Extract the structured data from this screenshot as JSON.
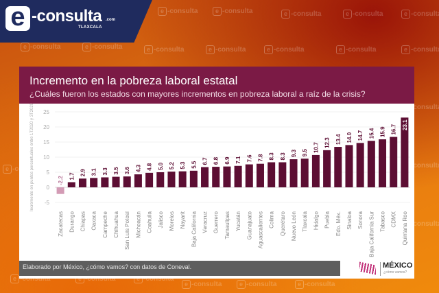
{
  "brand": {
    "logo_letter": "e",
    "name": "-consulta",
    "domain": ".com",
    "city": "TLAXCALA",
    "watermark": "-consulta"
  },
  "card": {
    "title": "Incremento en la pobreza laboral estatal",
    "subtitle": "¿Cuáles fueron los estados con mayores incrementos en pobreza laboral a raíz de la crisis?",
    "footer": "Elaborado por México, ¿cómo vamos? con datos de Coneval.",
    "source_logo": {
      "name": "MÉXICO",
      "tagline": "¿cómo vamos?"
    }
  },
  "colors": {
    "positive_bar": "#5c0e33",
    "negative_bar": "#d39bb5",
    "header": "#7b1a45",
    "brand_navy": "#1f2b5e"
  },
  "chart_data": {
    "type": "bar",
    "title": "Incremento en la pobreza laboral estatal",
    "subtitle": "¿Cuáles fueron los estados con mayores incrementos en pobreza laboral a raíz de la crisis?",
    "xlabel": "",
    "ylabel": "Incremento en puntos porcentuales entre 1T2020 y 3T2020",
    "ylim": [
      -5,
      25
    ],
    "yticks": [
      25,
      20,
      15,
      10,
      5,
      0,
      -5
    ],
    "grid": true,
    "legend": "none",
    "categories": [
      "Zacatecas",
      "Durango",
      "Chiapas",
      "Oaxaca",
      "Campeche",
      "Chihuahua",
      "San Luis Potosí",
      "Michoacán",
      "Coahuila",
      "Jalisco",
      "Morelos",
      "Nayarit",
      "Baja California",
      "Veracruz",
      "Guerrero",
      "Tamaulipas",
      "Yucatán",
      "Guanajuato",
      "Aguascalientes",
      "Colima",
      "Querétaro",
      "Nuevo León",
      "Tlaxcala",
      "Hidalgo",
      "Puebla",
      "Edo. Méx.",
      "Sinaloa",
      "Sonora",
      "Baja California Sur",
      "Tabasco",
      "CDMX",
      "Quintana Roo"
    ],
    "values": [
      -2.2,
      1.7,
      2.9,
      3.1,
      3.3,
      3.5,
      3.6,
      4.3,
      4.8,
      5.0,
      5.2,
      5.3,
      5.5,
      6.7,
      6.8,
      6.9,
      7.1,
      7.6,
      7.8,
      8.3,
      8.3,
      9.3,
      9.5,
      10.7,
      12.3,
      13.4,
      14.0,
      14.7,
      15.4,
      15.9,
      16.7,
      23.1
    ],
    "data_labels": [
      "-2.2",
      "1.7",
      "2.9",
      "3.1",
      "3.3",
      "3.5",
      "3.6",
      "4.3",
      "4.8",
      "5.0",
      "5.2",
      "5.3",
      "5.5",
      "6.7",
      "6.8",
      "6.9",
      "7.1",
      "7.6",
      "7.8",
      "8.3",
      "8.3",
      "9.3",
      "9.5",
      "10.7",
      "12.3",
      "13.4",
      "14.0",
      "14.7",
      "15.4",
      "15.9",
      "16.7",
      "23.1"
    ]
  }
}
